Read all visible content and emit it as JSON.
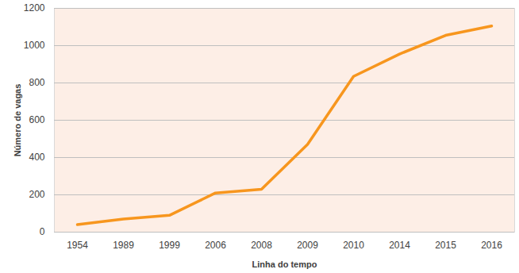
{
  "chart_data": {
    "type": "line",
    "x_label": "Linha do tempo",
    "y_label": "Número de vagas",
    "categories": [
      "1954",
      "1989",
      "1999",
      "2006",
      "2008",
      "2009",
      "2010",
      "2014",
      "2015",
      "2016"
    ],
    "values": [
      40,
      70,
      90,
      210,
      230,
      470,
      835,
      955,
      1055,
      1105
    ],
    "color": "#f7961e",
    "ylim": [
      0,
      1200
    ],
    "yticks": [
      0,
      200,
      400,
      600,
      800,
      1000,
      1200
    ],
    "grid": true
  }
}
